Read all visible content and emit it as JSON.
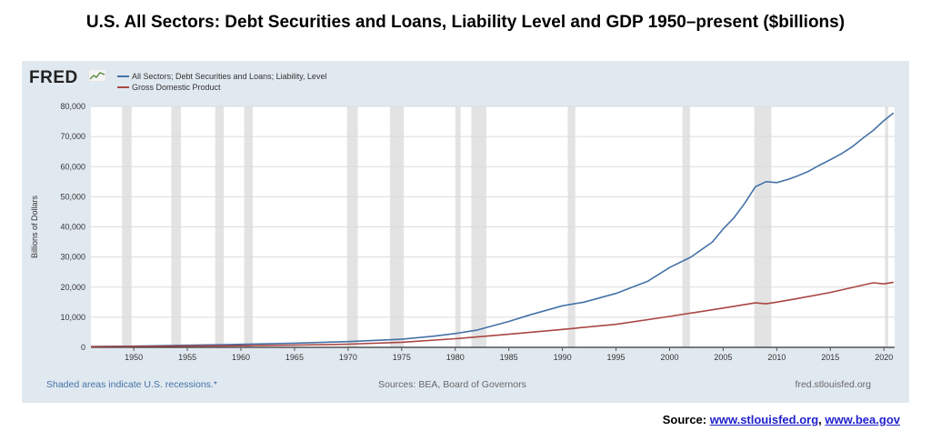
{
  "title": "U.S. All Sectors: Debt Securities and Loans, Liability Level and GDP 1950–present ($billions)",
  "fred": {
    "logo_text": "FRED",
    "footer_recessions": "Shaded areas indicate U.S. recessions.*",
    "footer_sources": "Sources: BEA, Board of Governors",
    "footer_url": "fred.stlouisfed.org"
  },
  "source_line": {
    "label": "Source:",
    "link1": "www.stlouisfed.org",
    "separator": ",",
    "link2": "www.bea.gov"
  },
  "colors": {
    "debt": "#4572a7",
    "gdp": "#aa4643",
    "recession": "#e3e3e3",
    "panel": "#e1e9f0",
    "recession_note": "#4472a8"
  },
  "chart_data": {
    "type": "line",
    "title": "",
    "xlabel": "",
    "ylabel": "Billions of Dollars",
    "xlim": [
      1946,
      2021
    ],
    "ylim": [
      0,
      80000
    ],
    "yticks": [
      0,
      10000,
      20000,
      30000,
      40000,
      50000,
      60000,
      70000,
      80000
    ],
    "ytick_labels": [
      "0",
      "10,000",
      "20,000",
      "30,000",
      "40,000",
      "50,000",
      "60,000",
      "70,000",
      "80,000"
    ],
    "xticks": [
      1950,
      1955,
      1960,
      1965,
      1970,
      1975,
      1980,
      1985,
      1990,
      1995,
      2000,
      2005,
      2010,
      2015,
      2020
    ],
    "xtick_labels": [
      "1950",
      "1955",
      "1960",
      "1965",
      "1970",
      "1975",
      "1980",
      "1985",
      "1990",
      "1995",
      "2000",
      "2005",
      "2010",
      "2015",
      "2020"
    ],
    "grid": true,
    "legend_position": "top-left",
    "recessions": [
      [
        1948.9,
        1949.8
      ],
      [
        1953.5,
        1954.4
      ],
      [
        1957.6,
        1958.4
      ],
      [
        1960.3,
        1961.1
      ],
      [
        1969.9,
        1970.9
      ],
      [
        1973.9,
        1975.2
      ],
      [
        1980.0,
        1980.5
      ],
      [
        1981.5,
        1982.9
      ],
      [
        1990.5,
        1991.2
      ],
      [
        2001.2,
        2001.9
      ],
      [
        2007.9,
        2009.5
      ],
      [
        2020.1,
        2020.4
      ]
    ],
    "series": [
      {
        "name": "All Sectors; Debt Securities and Loans; Liability, Level",
        "color": "#4572a7",
        "x": [
          1946,
          1950,
          1955,
          1960,
          1965,
          1970,
          1975,
          1978,
          1980,
          1982,
          1985,
          1987,
          1990,
          1992,
          1995,
          1998,
          2000,
          2002,
          2004,
          2005,
          2006,
          2007,
          2008,
          2009,
          2010,
          2011,
          2012,
          2013,
          2014,
          2015,
          2016,
          2017,
          2018,
          2019,
          2020,
          2020.9
        ],
        "values": [
          300,
          400,
          700,
          1000,
          1400,
          1900,
          2700,
          3700,
          4600,
          5700,
          8600,
          10800,
          13800,
          15000,
          17900,
          22000,
          26500,
          30000,
          35000,
          39300,
          43000,
          47800,
          53300,
          55000,
          54700,
          55700,
          57000,
          58500,
          60500,
          62300,
          64200,
          66500,
          69300,
          72000,
          75300,
          77800
        ]
      },
      {
        "name": "Gross Domestic Product",
        "color": "#aa4643",
        "x": [
          1946,
          1950,
          1955,
          1960,
          1965,
          1970,
          1975,
          1980,
          1985,
          1990,
          1995,
          2000,
          2005,
          2008,
          2009,
          2010,
          2012,
          2015,
          2019,
          2020,
          2020.9
        ],
        "values": [
          225,
          300,
          430,
          550,
          750,
          1070,
          1680,
          2860,
          4340,
          5960,
          7640,
          10250,
          13040,
          14770,
          14450,
          15000,
          16250,
          18240,
          21430,
          21060,
          21600
        ]
      }
    ]
  }
}
